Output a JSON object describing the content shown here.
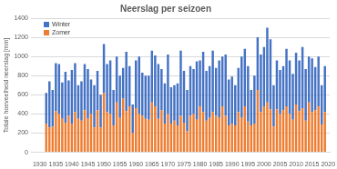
{
  "chart_data": {
    "type": "bar",
    "title": "Neerslag per seizoen",
    "y_label": "Totale hoeveelheid neerslag [mm]",
    "categories": [
      "1930",
      null,
      null,
      null,
      null,
      "1935",
      null,
      null,
      null,
      null,
      "1940",
      null,
      null,
      null,
      null,
      "1945",
      null,
      null,
      null,
      null,
      "1950",
      null,
      null,
      null,
      null,
      "1955",
      null,
      null,
      null,
      null,
      "1960",
      null,
      null,
      null,
      null,
      "1965",
      null,
      null,
      null,
      null,
      "1970",
      null,
      null,
      null,
      null,
      "1975",
      null,
      null,
      null,
      null,
      "1980",
      null,
      null,
      null,
      null,
      "1985",
      null,
      null,
      null,
      null,
      "1990",
      null,
      null,
      null,
      null,
      "1995",
      null,
      null,
      null,
      null,
      "2000",
      null,
      null,
      null,
      null,
      "2005",
      null,
      null,
      null,
      null,
      "2010",
      null,
      null,
      null,
      null,
      "2015",
      null,
      null,
      null,
      null,
      "2020"
    ],
    "series": [
      {
        "name": "Zomer",
        "color": "#ed7d31",
        "values": [
          null,
          null,
          300,
          260,
          270,
          430,
          400,
          350,
          310,
          380,
          300,
          420,
          350,
          330,
          440,
          350,
          400,
          260,
          440,
          260,
          620,
          420,
          400,
          280,
          520,
          360,
          560,
          430,
          480,
          200,
          460,
          400,
          380,
          350,
          340,
          520,
          480,
          350,
          440,
          300,
          400,
          300,
          330,
          280,
          380,
          310,
          220,
          380,
          400,
          340,
          480,
          420,
          330,
          360,
          420,
          380,
          360,
          480,
          380,
          280,
          300,
          280,
          420,
          360,
          480,
          320,
          280,
          300,
          650,
          420,
          480,
          520,
          450,
          270,
          450,
          400,
          440,
          480,
          400,
          340,
          500,
          430,
          460,
          330,
          520,
          420,
          440,
          480,
          290,
          420,
          null
        ]
      },
      {
        "name": "Winter",
        "color": "#4472c4",
        "values": [
          null,
          null,
          320,
          480,
          380,
          500,
          520,
          380,
          530,
          370,
          560,
          510,
          350,
          410,
          480,
          520,
          360,
          440,
          410,
          340,
          510,
          500,
          560,
          370,
          480,
          440,
          320,
          620,
          420,
          300,
          500,
          600,
          450,
          450,
          460,
          540,
          530,
          570,
          430,
          420,
          620,
          380,
          370,
          440,
          680,
          540,
          430,
          520,
          470,
          610,
          480,
          630,
          520,
          540,
          640,
          500,
          600,
          520,
          640,
          480,
          490,
          420,
          460,
          640,
          600,
          580,
          370,
          500,
          550,
          600,
          620,
          780,
          730,
          430,
          510,
          460,
          460,
          600,
          560,
          480,
          540,
          530,
          640,
          540,
          480,
          560,
          450,
          520,
          410,
          480,
          null
        ]
      }
    ],
    "stacked": true,
    "legend": "upper left",
    "grid": true,
    "ylim": [
      0,
      1400
    ],
    "yticks": [
      0,
      200,
      400,
      600,
      800,
      1000,
      1200,
      1400
    ]
  }
}
